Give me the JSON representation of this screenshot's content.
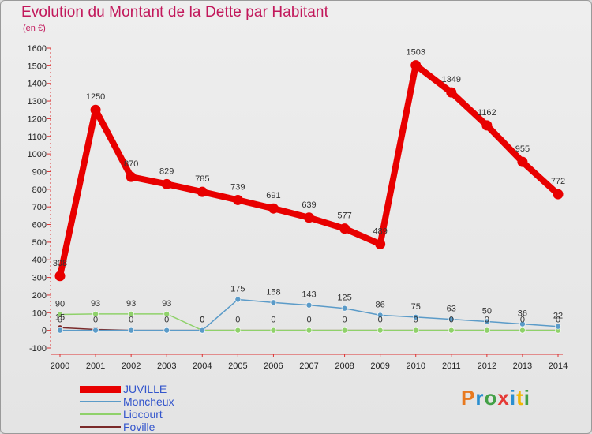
{
  "header": {
    "title": "Evolution du Montant de la Dette par Habitant",
    "subtitle": "(en €)"
  },
  "logo": {
    "text": "Proxiti",
    "colors": [
      "#e8791f",
      "#2b8fd0",
      "#43a047",
      "#e53935",
      "#2b8fd0",
      "#f2b705",
      "#43a047"
    ]
  },
  "chart_data": {
    "type": "line",
    "title": "Evolution du Montant de la Dette par Habitant",
    "subtitle": "(en €)",
    "xlabel": "",
    "ylabel": "",
    "x": [
      "2000",
      "2001",
      "2002",
      "2003",
      "2004",
      "2005",
      "2006",
      "2007",
      "2008",
      "2009",
      "2010",
      "2011",
      "2012",
      "2013",
      "2014"
    ],
    "ylim": [
      -100,
      1600
    ],
    "yticks": [
      -100,
      0,
      100,
      200,
      300,
      400,
      500,
      600,
      700,
      800,
      900,
      1000,
      1100,
      1200,
      1300,
      1400,
      1500,
      1600
    ],
    "grid": false,
    "legend": "bottom-left",
    "series": [
      {
        "name": "JUVILLE",
        "color": "#e80000",
        "values": [
          308,
          1250,
          870,
          829,
          785,
          739,
          691,
          639,
          577,
          489,
          1503,
          1349,
          1162,
          955,
          772
        ],
        "labels": [
          "308",
          "1250",
          "870",
          "829",
          "785",
          "739",
          "691",
          "639",
          "577",
          "489",
          "1503",
          "1349",
          "1162",
          "955",
          "772"
        ]
      },
      {
        "name": "Moncheux",
        "color": "#5b9bc8",
        "values": [
          0,
          0,
          0,
          0,
          0,
          175,
          158,
          143,
          125,
          86,
          75,
          63,
          50,
          36,
          22
        ],
        "labels": [
          "0",
          "0",
          "0",
          "0",
          "0",
          "175",
          "158",
          "143",
          "125",
          "86",
          "75",
          "63",
          "50",
          "36",
          "22"
        ]
      },
      {
        "name": "Liocourt",
        "color": "#8fd16a",
        "values": [
          90,
          93,
          93,
          93,
          0,
          0,
          0,
          0,
          0,
          0,
          0,
          0,
          0,
          0,
          0
        ],
        "labels": [
          "90",
          "93",
          "93",
          "93",
          "0",
          "0",
          "0",
          "0",
          "0",
          "0",
          "0",
          "0",
          "0",
          "0",
          "0"
        ]
      },
      {
        "name": "Foville",
        "color": "#7a2a2a",
        "values": [
          15,
          5,
          0,
          0,
          0,
          0,
          0,
          0,
          0,
          0,
          0,
          0,
          0,
          0,
          0
        ],
        "labels": [
          "15",
          "",
          "",
          "",
          "",
          "",
          "",
          "",
          "",
          "",
          "",
          "",
          "",
          "",
          ""
        ]
      }
    ]
  }
}
